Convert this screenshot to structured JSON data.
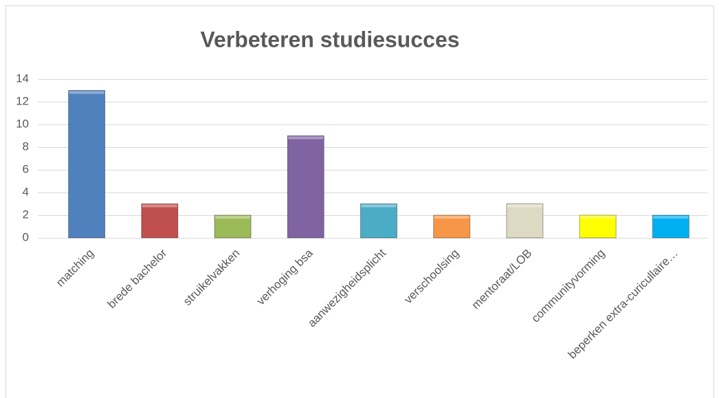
{
  "chart_data": {
    "type": "bar",
    "title": "Verbeteren studiesucces",
    "categories": [
      "matching",
      "brede bachelor",
      "struikelvakken",
      "verhoging bsa",
      "aanwezigheidsplicht",
      "verschoolsing",
      "mentoraat/LOB",
      "communityvorming",
      "beperken extra-curicullaire…"
    ],
    "values": [
      13,
      3,
      2,
      9,
      3,
      2,
      3,
      2,
      2
    ],
    "colors": [
      "#4f81bd",
      "#c0504d",
      "#9bbb59",
      "#8064a2",
      "#4bacc6",
      "#f79646",
      "#ddd9c3",
      "#ffff00",
      "#00b0f0"
    ],
    "ylim": [
      0,
      14
    ],
    "yticks": [
      0,
      2,
      4,
      6,
      8,
      10,
      12,
      14
    ],
    "grid": true
  }
}
